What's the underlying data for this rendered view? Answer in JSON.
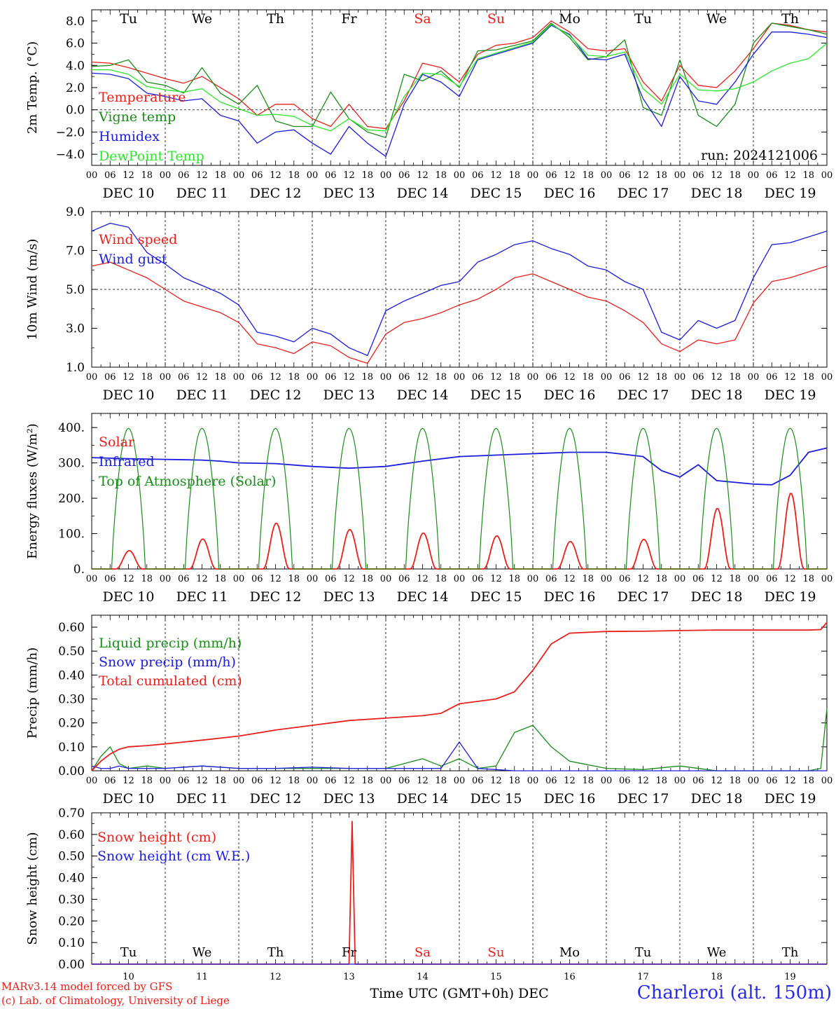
{
  "chart_data": [
    {
      "type": "line",
      "ylabel": "2m Temp. (°C)",
      "ylim": [
        -5.0,
        9.0
      ],
      "yticks": [
        -4.0,
        -2.0,
        0.0,
        2.0,
        4.0,
        6.0,
        8.0
      ],
      "ytick_labels": [
        "−4.0",
        "−2.0",
        "0.0",
        "2.0",
        "4.0",
        "6.0",
        "8.0"
      ],
      "zero_line": 0.0,
      "weekdays": [
        "Tu",
        "We",
        "Th",
        "Fr",
        "Sa",
        "Su",
        "Mo",
        "Tu",
        "We",
        "Th"
      ],
      "weekend_color": "#e8201c",
      "weekend_days": [
        "Sa",
        "Su"
      ],
      "run_label": "run: 2024121006",
      "legend_placement": "top-left",
      "grid": true,
      "x": [
        0,
        6,
        12,
        18,
        24,
        30,
        36,
        42,
        48,
        54,
        60,
        66,
        72,
        78,
        84,
        90,
        96,
        102,
        108,
        114,
        120,
        126,
        132,
        138,
        144,
        150,
        156,
        162,
        168,
        174,
        180,
        186,
        192,
        198,
        204,
        210,
        216,
        222,
        228,
        234,
        240
      ],
      "series": [
        {
          "name": "Temperature",
          "color": "#e8201c",
          "values": [
            4.3,
            4.2,
            3.8,
            3.3,
            2.8,
            2.4,
            3.0,
            2.0,
            1.0,
            -0.5,
            0.5,
            0.5,
            -0.8,
            -1.5,
            0.5,
            -1.5,
            -1.7,
            0.8,
            4.2,
            3.8,
            2.5,
            5.0,
            5.8,
            6.0,
            6.5,
            8.0,
            7.0,
            5.5,
            5.3,
            5.5,
            2.5,
            0.8,
            4.0,
            2.2,
            2.0,
            3.5,
            5.5,
            7.8,
            7.6,
            7.2,
            7.0
          ]
        },
        {
          "name": "Vigne temp",
          "color": "#1a8c1a",
          "values": [
            3.9,
            4.0,
            4.5,
            2.5,
            2.2,
            1.5,
            3.8,
            1.5,
            0.5,
            2.2,
            -1.0,
            -1.5,
            -1.5,
            1.6,
            -0.8,
            -2.0,
            -2.5,
            3.2,
            2.6,
            3.5,
            2.0,
            5.3,
            5.4,
            5.8,
            6.2,
            7.8,
            6.5,
            4.5,
            4.8,
            6.3,
            0.2,
            -0.5,
            4.5,
            -0.5,
            -1.5,
            0.5,
            6.0,
            7.8,
            7.5,
            7.2,
            6.8
          ]
        },
        {
          "name": "Humidex",
          "color": "#1c1cdc",
          "values": [
            3.3,
            3.2,
            2.8,
            1.5,
            1.2,
            0.8,
            1.0,
            -0.5,
            -1.0,
            -3.0,
            -2.0,
            -1.8,
            -3.0,
            -4.0,
            -1.5,
            -3.0,
            -4.2,
            0.5,
            3.2,
            2.5,
            1.2,
            4.5,
            5.0,
            5.5,
            6.0,
            7.6,
            6.8,
            4.6,
            4.5,
            5.0,
            1.0,
            -1.5,
            3.0,
            0.8,
            0.5,
            2.5,
            5.0,
            7.0,
            7.0,
            6.8,
            6.5
          ]
        },
        {
          "name": "DewPoint Temp",
          "color": "#2ce62c",
          "values": [
            3.6,
            3.6,
            3.2,
            2.1,
            1.8,
            1.6,
            1.9,
            0.7,
            0.1,
            -0.5,
            -0.4,
            -0.6,
            -1.4,
            -1.9,
            -0.8,
            -1.8,
            -1.9,
            1.2,
            3.3,
            3.2,
            2.1,
            4.6,
            5.1,
            5.6,
            6.1,
            7.7,
            6.7,
            4.9,
            4.8,
            5.2,
            1.9,
            0.5,
            3.2,
            1.8,
            1.7,
            1.9,
            2.5,
            3.5,
            4.2,
            4.6,
            6.0
          ]
        }
      ]
    },
    {
      "type": "line",
      "ylabel": "10m Wind (m/s)",
      "ylim": [
        1.0,
        9.0
      ],
      "yticks": [
        1.0,
        3.0,
        5.0,
        7.0,
        9.0
      ],
      "ytick_labels": [
        "1.0",
        "3.0",
        "5.0",
        "7.0",
        "9.0"
      ],
      "ref_line": 5.0,
      "legend_placement": "top-left",
      "grid": true,
      "x": [
        0,
        6,
        12,
        18,
        24,
        30,
        36,
        42,
        48,
        54,
        60,
        66,
        72,
        78,
        84,
        90,
        96,
        102,
        108,
        114,
        120,
        126,
        132,
        138,
        144,
        150,
        156,
        162,
        168,
        174,
        180,
        186,
        192,
        198,
        204,
        210,
        216,
        222,
        228,
        234,
        240
      ],
      "series": [
        {
          "name": "Wind speed",
          "color": "#e8201c",
          "values": [
            6.2,
            6.4,
            6.0,
            5.6,
            5.0,
            4.4,
            4.1,
            3.8,
            3.3,
            2.2,
            2.0,
            1.7,
            2.3,
            2.1,
            1.5,
            1.2,
            2.7,
            3.3,
            3.5,
            3.8,
            4.2,
            4.5,
            5.0,
            5.6,
            5.8,
            5.4,
            5.0,
            4.6,
            4.4,
            3.9,
            3.3,
            2.2,
            1.8,
            2.4,
            2.2,
            2.4,
            4.3,
            5.4,
            5.6,
            5.9,
            6.2
          ]
        },
        {
          "name": "Wind gust",
          "color": "#1c1cdc",
          "values": [
            8.0,
            8.4,
            8.2,
            6.9,
            6.3,
            5.6,
            5.2,
            4.8,
            4.2,
            2.8,
            2.6,
            2.3,
            3.0,
            2.7,
            2.0,
            1.6,
            3.9,
            4.4,
            4.8,
            5.2,
            5.4,
            6.4,
            6.8,
            7.3,
            7.5,
            7.1,
            6.8,
            6.2,
            6.0,
            5.4,
            5.0,
            2.8,
            2.4,
            3.4,
            3.0,
            3.4,
            5.6,
            7.3,
            7.4,
            7.7,
            8.0
          ]
        }
      ]
    },
    {
      "type": "line",
      "ylabel": "Energy fluxes (W/m²)",
      "ylim": [
        0,
        440
      ],
      "yticks": [
        0,
        100,
        200,
        300,
        400
      ],
      "ytick_labels": [
        "0.",
        "100.",
        "200.",
        "300.",
        "400."
      ],
      "legend_placement": "top-left",
      "grid": true,
      "series": [
        {
          "name": "Solar",
          "color": "#e8201c",
          "daily_peaks": [
            52,
            85,
            130,
            112,
            102,
            94,
            78,
            84,
            172,
            215
          ]
        },
        {
          "name": "Infrared",
          "color": "#1c1cdc",
          "x": [
            0,
            12,
            24,
            36,
            42,
            48,
            60,
            72,
            84,
            96,
            108,
            120,
            132,
            144,
            156,
            168,
            174,
            180,
            186,
            192,
            198,
            204,
            210,
            216,
            222,
            228,
            234,
            240
          ],
          "values": [
            315,
            312,
            310,
            308,
            305,
            300,
            298,
            290,
            285,
            290,
            305,
            318,
            322,
            326,
            330,
            330,
            324,
            318,
            278,
            260,
            295,
            250,
            245,
            240,
            238,
            265,
            330,
            342
          ]
        },
        {
          "name": "Top of Atmosphere (Solar)",
          "color": "#1a8c1a",
          "daily_peaks": [
            398,
            398,
            398,
            398,
            398,
            398,
            398,
            398,
            398,
            398
          ]
        }
      ]
    },
    {
      "type": "line",
      "ylabel": "Precip (mm/h)",
      "ylim": [
        0.0,
        0.65
      ],
      "yticks": [
        0.0,
        0.1,
        0.2,
        0.3,
        0.4,
        0.5,
        0.6
      ],
      "ytick_labels": [
        "0.00",
        "0.10",
        "0.20",
        "0.30",
        "0.40",
        "0.50",
        "0.60"
      ],
      "legend_placement": "top-left",
      "grid": true,
      "x": [
        0,
        3,
        6,
        9,
        12,
        18,
        24,
        36,
        48,
        60,
        72,
        84,
        96,
        108,
        114,
        120,
        126,
        132,
        138,
        144,
        150,
        156,
        168,
        180,
        192,
        204,
        216,
        228,
        234,
        238,
        240
      ],
      "series": [
        {
          "name": "Liquid precip (mm/h)",
          "color": "#1a8c1a",
          "values": [
            0.0,
            0.06,
            0.1,
            0.03,
            0.01,
            0.02,
            0.01,
            0.02,
            0.01,
            0.01,
            0.01,
            0.01,
            0.01,
            0.05,
            0.02,
            0.05,
            0.01,
            0.02,
            0.16,
            0.19,
            0.1,
            0.04,
            0.01,
            0.005,
            0.02,
            0.0,
            0.0,
            0.0,
            0.0,
            0.01,
            0.26
          ]
        },
        {
          "name": "Snow precip (mm/h)",
          "color": "#1c1cdc",
          "values": [
            0.02,
            0.01,
            0.01,
            0.02,
            0.01,
            0.01,
            0.01,
            0.02,
            0.01,
            0.01,
            0.015,
            0.01,
            0.01,
            0.01,
            0.01,
            0.12,
            0.01,
            0.005,
            0.0,
            0.0,
            0.0,
            0.0,
            0.0,
            0.0,
            0.0,
            0.0,
            0.0,
            0.0,
            0.0,
            0.0,
            0.0
          ]
        },
        {
          "name": "Total cumulated (cm)",
          "color": "#e8201c",
          "values": [
            0.0,
            0.04,
            0.07,
            0.09,
            0.1,
            0.105,
            0.112,
            0.128,
            0.145,
            0.17,
            0.19,
            0.21,
            0.22,
            0.23,
            0.24,
            0.28,
            0.29,
            0.3,
            0.33,
            0.42,
            0.53,
            0.575,
            0.582,
            0.583,
            0.586,
            0.588,
            0.588,
            0.588,
            0.588,
            0.59,
            0.62
          ]
        }
      ]
    },
    {
      "type": "line",
      "ylabel": "Snow height (cm)",
      "ylim": [
        0.0,
        0.7
      ],
      "yticks": [
        0.0,
        0.1,
        0.2,
        0.3,
        0.4,
        0.5,
        0.6,
        0.7
      ],
      "ytick_labels": [
        "0.00",
        "0.10",
        "0.20",
        "0.30",
        "0.40",
        "0.50",
        "0.60",
        "0.70"
      ],
      "legend_placement": "top-left",
      "grid": true,
      "xlabel": "Time UTC (GMT+0h) DEC",
      "day_numbers": [
        "10",
        "11",
        "12",
        "13",
        "14",
        "15",
        "16",
        "17",
        "18",
        "19"
      ],
      "weekdays": [
        "Tu",
        "We",
        "Th",
        "Fr",
        "Sa",
        "Su",
        "Mo",
        "Tu",
        "We",
        "Th"
      ],
      "weekend_days": [
        "Sa",
        "Su"
      ],
      "x": [
        0,
        84,
        85,
        86,
        87,
        240
      ],
      "series": [
        {
          "name": "Snow height (cm)",
          "color": "#e8201c",
          "values": [
            0.0,
            0.0,
            0.66,
            0.0,
            0.0,
            0.0
          ]
        },
        {
          "name": "Snow height (cm W.E.)",
          "color": "#1c1cdc",
          "values": [
            0.0,
            0.0,
            0.0,
            0.0,
            0.0,
            0.0
          ]
        }
      ]
    }
  ],
  "time_axis": {
    "hour_labels": [
      "00",
      "06",
      "12",
      "18"
    ],
    "end_label": "00",
    "date_labels": [
      "DEC 10",
      "DEC 11",
      "DEC 12",
      "DEC 13",
      "DEC 14",
      "DEC 15",
      "DEC 16",
      "DEC 17",
      "DEC 18",
      "DEC 19"
    ]
  },
  "footer": {
    "model_line": "MARv3.14 model forced by GFS",
    "credit_line": "(c) Lab. of Climatology, University of Liege",
    "station": "Charleroi (alt. 150m)",
    "model_color": "#e8201c",
    "station_color": "#2a2ae6"
  }
}
